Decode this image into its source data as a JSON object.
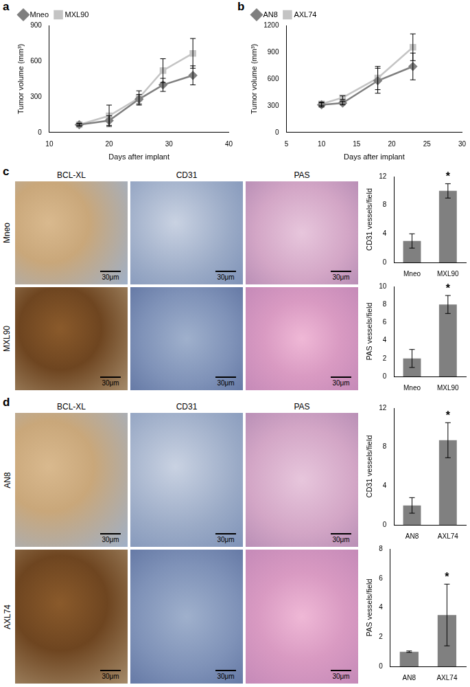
{
  "panel_labels": [
    "a",
    "b",
    "c",
    "d"
  ],
  "image_panels": [
    {
      "columns": [
        "BCL-XL",
        "CD31",
        "PAS"
      ],
      "rows": [
        "Mneo",
        "MXL90"
      ],
      "scale_bar": "30μm"
    },
    {
      "columns": [
        "BCL-XL",
        "CD31",
        "PAS"
      ],
      "rows": [
        "AN8",
        "AXL74"
      ],
      "scale_bar": "30μm"
    }
  ],
  "chart_data": [
    {
      "type": "line",
      "x_label": "Days after implant",
      "y_label": "Tumor volume (mm³)",
      "xlim": [
        10,
        40
      ],
      "xticks": [
        10,
        20,
        30,
        40
      ],
      "ylim": [
        0,
        900
      ],
      "yticks": [
        0,
        300,
        600,
        900
      ],
      "grid": false,
      "legend": "upper left",
      "series": [
        {
          "name": "Mneo",
          "color": "#7f7f7f",
          "marker": "diamond",
          "x": [
            15,
            20,
            25,
            29,
            34
          ],
          "values": [
            65,
            100,
            280,
            400,
            480
          ],
          "errors": [
            10,
            40,
            40,
            55,
            80
          ]
        },
        {
          "name": "MXL90",
          "color": "#c4c4c4",
          "marker": "square",
          "x": [
            15,
            20,
            25,
            29,
            34
          ],
          "values": [
            65,
            140,
            290,
            520,
            665
          ],
          "errors": [
            10,
            90,
            60,
            100,
            125
          ]
        }
      ]
    },
    {
      "type": "line",
      "x_label": "Days after implant",
      "y_label": "Tumor volume (mm³)",
      "xlim": [
        5,
        30
      ],
      "xticks": [
        5,
        10,
        15,
        20,
        25,
        30
      ],
      "ylim": [
        0,
        1200
      ],
      "yticks": [
        0,
        300,
        600,
        900,
        1200
      ],
      "grid": false,
      "legend": "upper left",
      "series": [
        {
          "name": "AN8",
          "color": "#7f7f7f",
          "marker": "diamond",
          "x": [
            10,
            13,
            18,
            23
          ],
          "values": [
            310,
            330,
            580,
            740
          ],
          "errors": [
            25,
            20,
            140,
            150
          ]
        },
        {
          "name": "AXL74",
          "color": "#c4c4c4",
          "marker": "square",
          "x": [
            10,
            13,
            18,
            23
          ],
          "values": [
            320,
            390,
            610,
            955
          ],
          "errors": [
            20,
            20,
            130,
            150
          ]
        }
      ]
    },
    {
      "type": "bar",
      "y_label": "CD31 vessels/field",
      "categories": [
        "Mneo",
        "MXL90"
      ],
      "values": [
        3,
        10
      ],
      "errors": [
        1,
        1
      ],
      "color": "#808080",
      "ylim": [
        0,
        12
      ],
      "yticks": [
        0,
        4,
        8,
        12
      ],
      "grid": false,
      "annotations": [
        {
          "text": "*",
          "category": "MXL90"
        }
      ]
    },
    {
      "type": "bar",
      "y_label": "PAS vessels/field",
      "categories": [
        "Mneo",
        "MXL90"
      ],
      "values": [
        2,
        8
      ],
      "errors": [
        1,
        1
      ],
      "color": "#808080",
      "ylim": [
        0,
        10
      ],
      "yticks": [
        0,
        2,
        4,
        6,
        8,
        10
      ],
      "grid": false,
      "annotations": [
        {
          "text": "*",
          "category": "MXL90"
        }
      ]
    },
    {
      "type": "bar",
      "y_label": "CD31 vessels/field",
      "categories": [
        "AN8",
        "AXL74"
      ],
      "values": [
        2,
        8.7
      ],
      "errors": [
        0.8,
        1.8
      ],
      "color": "#808080",
      "ylim": [
        0,
        12
      ],
      "yticks": [
        0,
        4,
        8,
        12
      ],
      "grid": false,
      "annotations": [
        {
          "text": "*",
          "category": "AXL74"
        }
      ]
    },
    {
      "type": "bar",
      "y_label": "PAS vessels/field",
      "categories": [
        "AN8",
        "AXL74"
      ],
      "values": [
        1,
        3.5
      ],
      "errors": [
        0.05,
        2.1
      ],
      "color": "#808080",
      "ylim": [
        0,
        8
      ],
      "yticks": [
        0,
        2,
        4,
        6,
        8
      ],
      "grid": false,
      "annotations": [
        {
          "text": "*",
          "category": "AXL74"
        }
      ]
    }
  ]
}
